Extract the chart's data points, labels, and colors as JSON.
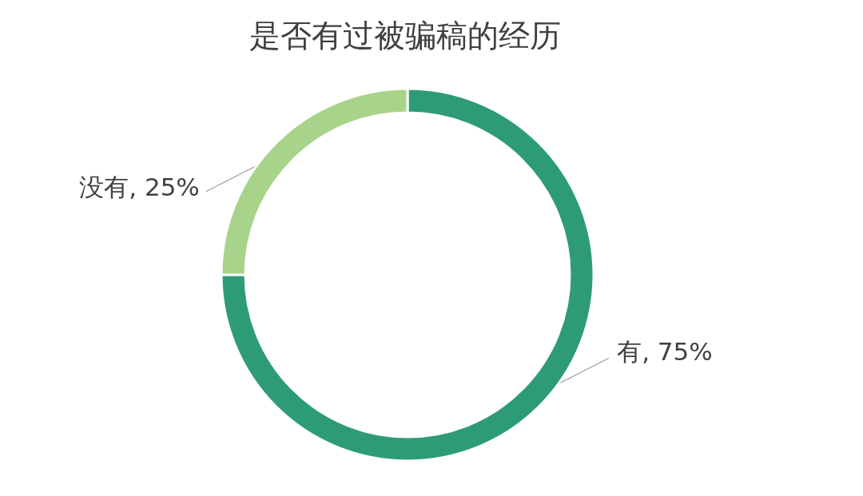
{
  "chart_data": {
    "type": "donut",
    "title": "是否有过被骗稿的经历",
    "categories": [
      "有",
      "没有"
    ],
    "values": [
      75,
      25
    ],
    "colors": [
      "#2e9b78",
      "#a8d38b"
    ],
    "value_labels": [
      ", 75%",
      ", 25%"
    ],
    "legend": false
  }
}
